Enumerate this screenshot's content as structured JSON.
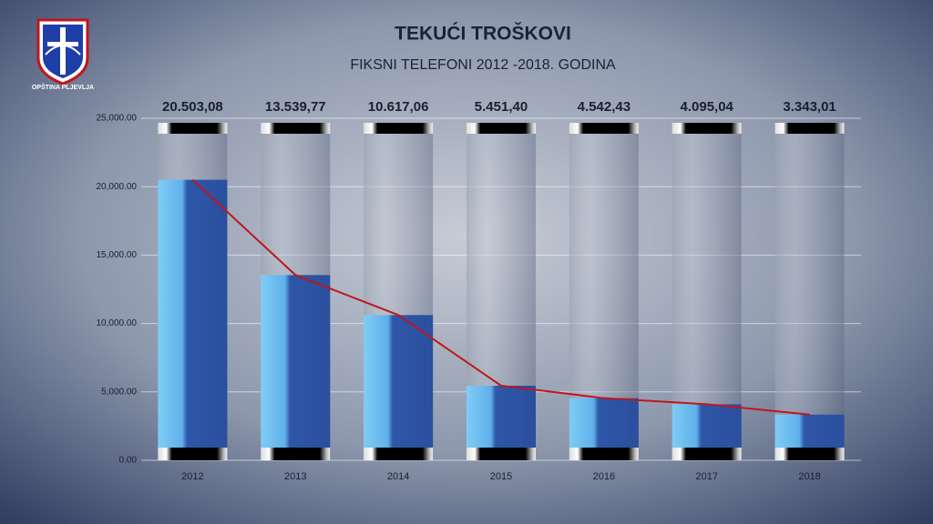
{
  "logo": {
    "text": "OPŠTINA PLJEVLJA"
  },
  "chart_data": {
    "type": "bar-line",
    "title": "TEKUĆI TROŠKOVI",
    "subtitle": "FIKSNI TELEFONI 2012 -2018. GODINA",
    "categories": [
      "2012",
      "2013",
      "2014",
      "2015",
      "2016",
      "2017",
      "2018"
    ],
    "values": [
      20503.08,
      13539.77,
      10617.06,
      5451.4,
      4542.43,
      4095.04,
      3343.01
    ],
    "value_labels": [
      "20.503,08",
      "13.539,77",
      "10.617,06",
      "5.451,40",
      "4.542,43",
      "4.095,04",
      "3.343,01"
    ],
    "color": "#2f56a8",
    "line_color": "#c0161c",
    "ylim": [
      0,
      25000
    ],
    "yticks": [
      {
        "value": 0,
        "label": "0.00"
      },
      {
        "value": 5000,
        "label": "5,000.00"
      },
      {
        "value": 10000,
        "label": "10,000.00"
      },
      {
        "value": 15000,
        "label": "15,000.00"
      },
      {
        "value": 20000,
        "label": "20,000.00"
      },
      {
        "value": 25000,
        "label": "25,000.00"
      }
    ],
    "grid": true
  }
}
